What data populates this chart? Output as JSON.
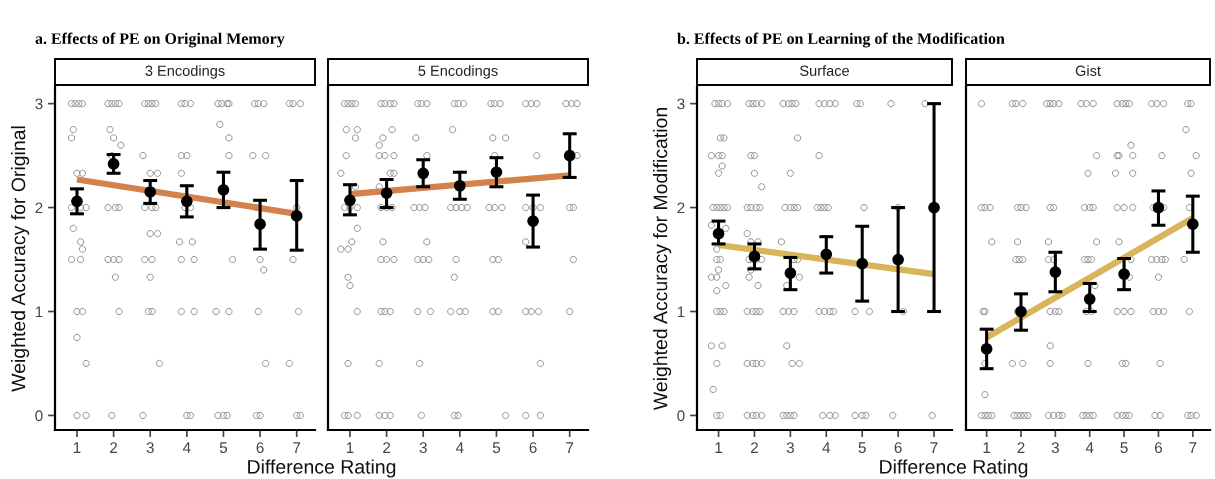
{
  "chart_data": [
    {
      "type": "scatter",
      "title": "a. Effects of PE on Original Memory",
      "subtitle": "3 Encodings",
      "xlabel": "Difference Rating",
      "ylabel": "Weighted Accuracy for Original",
      "xlim": [
        0.4,
        7.5
      ],
      "xticks": [
        1,
        2,
        3,
        4,
        5,
        6,
        7
      ],
      "ylim": [
        -0.14,
        3.16
      ],
      "yticks": [
        0,
        1,
        2,
        3
      ],
      "series": [
        {
          "color": "#8c8c8c",
          "marker": "circle",
          "x": [
            0.85,
            0.95,
            1.05,
            1.15,
            1.85,
            1.95,
            2.05,
            2.15,
            2.85,
            2.95,
            3.05,
            3.15,
            3.85,
            3.95,
            4.1,
            4.85,
            4.95,
            5.1,
            5.15,
            5.85,
            5.95,
            6.1,
            6.8,
            6.9,
            7.1,
            0.9,
            1.9,
            0.85,
            2.0,
            5.15,
            2.2,
            4.9,
            1.95,
            2.8,
            3.85,
            4.0,
            5.15,
            5.8,
            6.15,
            1.0,
            1.15,
            3.0,
            3.2,
            3.85,
            0.85,
            1.1,
            1.25,
            1.85,
            2.05,
            2.15,
            2.85,
            3.05,
            3.15,
            3.95,
            4.1,
            5.9,
            7.0,
            0.9,
            3.0,
            3.2,
            1.1,
            3.8,
            4.15,
            1.15,
            0.85,
            1.1,
            1.85,
            2.0,
            2.15,
            2.85,
            3.05,
            3.85,
            4.2,
            5.25,
            6.0,
            6.9,
            2.05,
            3.0,
            6.1,
            1.0,
            1.15,
            2.15,
            2.95,
            3.05,
            3.85,
            4.2,
            4.8,
            5.15,
            5.95,
            7.05,
            1.0,
            1.25,
            3.25,
            6.15,
            6.8,
            1.0,
            1.25,
            1.95,
            2.8,
            4.0,
            4.1,
            4.85,
            5.0,
            5.1,
            5.9,
            6.0,
            7.0,
            7.1
          ],
          "values": [
            3,
            3,
            3,
            3,
            3,
            3,
            3,
            3,
            3,
            3,
            3,
            3,
            3,
            3,
            3,
            3,
            3,
            3,
            3,
            3,
            3,
            3,
            3,
            3,
            3,
            2.75,
            2.75,
            2.67,
            2.67,
            2.67,
            2.6,
            2.8,
            2.5,
            2.5,
            2.5,
            2.5,
            2.5,
            2.5,
            2.5,
            2.33,
            2.33,
            2.33,
            2.33,
            2.33,
            2,
            2,
            2,
            2,
            2,
            2,
            2,
            2,
            2,
            2,
            2,
            2,
            2,
            1.8,
            1.75,
            1.75,
            1.67,
            1.67,
            1.67,
            1.6,
            1.5,
            1.5,
            1.5,
            1.5,
            1.5,
            1.5,
            1.5,
            1.5,
            1.5,
            1.5,
            1.5,
            1.5,
            1.33,
            1.33,
            1.4,
            1,
            1,
            1,
            1,
            1,
            1,
            1,
            1,
            1,
            1,
            1,
            0.75,
            0.5,
            0.5,
            0.5,
            0.5,
            0,
            0,
            0,
            0,
            0,
            0,
            0,
            0,
            0,
            0,
            0,
            0,
            0
          ]
        },
        {
          "type": "line",
          "color": "#d2824a",
          "marker": "none",
          "x": [
            1,
            7
          ],
          "values": [
            2.27,
            1.94
          ]
        },
        {
          "color": "#000000",
          "marker": "circle",
          "x": [
            1,
            2,
            3,
            4,
            5,
            6,
            7
          ],
          "values": [
            2.06,
            2.42,
            2.15,
            2.06,
            2.17,
            1.84,
            1.92
          ],
          "errors": [
            [
              1.94,
              2.18
            ],
            [
              2.33,
              2.51
            ],
            [
              2.04,
              2.26
            ],
            [
              1.91,
              2.21
            ],
            [
              2.0,
              2.34
            ],
            [
              1.6,
              2.07
            ],
            [
              1.59,
              2.26
            ]
          ]
        }
      ]
    },
    {
      "type": "scatter",
      "subtitle": "5 Encodings",
      "xlim": [
        0.4,
        7.5
      ],
      "xticks": [
        1,
        2,
        3,
        4,
        5,
        6,
        7
      ],
      "ylim": [
        -0.14,
        3.16
      ],
      "yticks": [
        0,
        1,
        2,
        3
      ],
      "tick_labels": "x",
      "series": [
        {
          "color": "#8c8c8c",
          "marker": "circle",
          "x": [
            0.85,
            0.95,
            1.05,
            1.15,
            1.85,
            1.95,
            2.1,
            2.2,
            2.85,
            2.95,
            3.1,
            3.85,
            3.95,
            4.1,
            4.85,
            4.95,
            5.1,
            5.8,
            5.95,
            6.1,
            6.9,
            7.05,
            7.2,
            0.9,
            1.2,
            2.15,
            3.8,
            1.15,
            1.9,
            2.8,
            4.9,
            5.25,
            1.8,
            0.9,
            1.8,
            1.95,
            2.2,
            3.1,
            4.95,
            6.1,
            7.2,
            0.75,
            2.1,
            2.2,
            1.15,
            1.8,
            0.85,
            1.0,
            1.2,
            1.85,
            2.0,
            2.15,
            2.75,
            2.9,
            3.05,
            3.75,
            3.9,
            4.05,
            4.2,
            4.8,
            4.95,
            5.15,
            5.8,
            6.0,
            6.2,
            7.0,
            7.1,
            1.2,
            1.05,
            1.9,
            3.1,
            5.8,
            0.75,
            0.95,
            1.85,
            2.0,
            2.2,
            2.85,
            3.0,
            3.15,
            3.9,
            4.9,
            5.05,
            7.1,
            0.95,
            3.85,
            1.0,
            1.2,
            1.85,
            1.95,
            2.1,
            2.85,
            3.2,
            3.75,
            4.0,
            4.15,
            4.9,
            5.05,
            5.8,
            5.95,
            6.15,
            7.0,
            0.95,
            1.8,
            2.9,
            6.2,
            0.85,
            0.95,
            1.2,
            1.8,
            1.95,
            2.1,
            2.95,
            3.85,
            3.95,
            5.25,
            5.8,
            6.2
          ],
          "values": [
            3,
            3,
            3,
            3,
            3,
            3,
            3,
            3,
            3,
            3,
            3,
            3,
            3,
            3,
            3,
            3,
            3,
            3,
            3,
            3,
            3,
            3,
            3,
            2.75,
            2.75,
            2.75,
            2.75,
            2.67,
            2.67,
            2.67,
            2.67,
            2.67,
            2.6,
            2.5,
            2.5,
            2.5,
            2.5,
            2.5,
            2.5,
            2.5,
            2.5,
            2.33,
            2.33,
            2.33,
            2.2,
            2.2,
            2,
            2,
            2,
            2,
            2,
            2,
            2,
            2,
            2,
            2,
            2,
            2,
            2,
            2,
            2,
            2,
            2,
            2,
            2,
            2,
            2,
            1.8,
            1.67,
            1.67,
            1.67,
            1.67,
            1.6,
            1.6,
            1.5,
            1.5,
            1.5,
            1.5,
            1.5,
            1.5,
            1.5,
            1.5,
            1.5,
            1.5,
            1.33,
            1.33,
            1.25,
            1,
            1,
            1,
            1,
            1,
            1,
            1,
            1,
            1,
            1,
            1,
            1,
            1,
            1,
            1,
            0.5,
            0.5,
            0.5,
            0.5,
            0,
            0,
            0,
            0,
            0,
            0,
            0,
            0,
            0,
            0,
            0,
            0
          ]
        },
        {
          "type": "line",
          "color": "#d2824a",
          "marker": "none",
          "x": [
            1,
            7
          ],
          "values": [
            2.13,
            2.31
          ]
        },
        {
          "color": "#000000",
          "marker": "circle",
          "x": [
            1,
            2,
            3,
            4,
            5,
            6,
            7
          ],
          "values": [
            2.07,
            2.14,
            2.33,
            2.21,
            2.34,
            1.87,
            2.5
          ],
          "errors": [
            [
              1.93,
              2.22
            ],
            [
              2.0,
              2.27
            ],
            [
              2.2,
              2.46
            ],
            [
              2.08,
              2.34
            ],
            [
              2.2,
              2.48
            ],
            [
              1.62,
              2.12
            ],
            [
              2.29,
              2.71
            ]
          ]
        }
      ]
    },
    {
      "type": "scatter",
      "title": "b. Effects of PE on Learning of the Modification",
      "subtitle": "Surface",
      "xlabel": "Difference Rating",
      "ylabel": "Weighted Accuracy for Modification",
      "xlim": [
        0.4,
        7.5
      ],
      "xticks": [
        1,
        2,
        3,
        4,
        5,
        6,
        7
      ],
      "ylim": [
        -0.14,
        3.16
      ],
      "yticks": [
        0,
        1,
        2,
        3
      ],
      "series": [
        {
          "color": "#8c8c8c",
          "marker": "circle",
          "x": [
            0.9,
            1.0,
            1.1,
            1.25,
            1.85,
            1.95,
            2.05,
            2.2,
            2.8,
            2.95,
            3.05,
            3.15,
            3.8,
            3.95,
            4.1,
            4.25,
            4.85,
            4.95,
            5.8,
            6.75,
            1.05,
            1.15,
            3.2,
            0.8,
            1.0,
            1.1,
            1.9,
            2.0,
            3.8,
            1.1,
            1.0,
            2.0,
            3.0,
            2.2,
            0.85,
            0.95,
            1.05,
            1.15,
            1.25,
            1.8,
            1.9,
            2.05,
            2.15,
            2.85,
            3.0,
            3.1,
            3.2,
            3.75,
            3.85,
            3.95,
            4.05,
            5.05,
            6.0,
            0.8,
            1.2,
            1.8,
            1.9,
            2.1,
            2.75,
            0.95,
            0.95,
            1.05,
            1.85,
            1.95,
            2.05,
            2.2,
            3.1,
            3.2,
            1.0,
            1.9,
            0.8,
            0.95,
            1.85,
            3.25,
            1.2,
            2.1,
            2.9,
            0.95,
            0.95,
            1.05,
            1.15,
            1.8,
            1.95,
            2.05,
            2.15,
            2.8,
            2.95,
            3.1,
            3.8,
            3.95,
            4.1,
            4.2,
            4.8,
            5.2,
            6.15,
            0.8,
            1.1,
            2.9,
            0.95,
            1.8,
            1.95,
            2.05,
            2.2,
            3.05,
            3.25,
            0.85,
            0.95,
            1.05,
            1.8,
            1.95,
            2.05,
            2.2,
            2.8,
            2.9,
            3.0,
            3.1,
            3.9,
            4.1,
            4.25,
            4.8,
            5.0,
            5.1,
            5.85,
            6.95
          ],
          "values": [
            3,
            3,
            3,
            3,
            3,
            3,
            3,
            3,
            3,
            3,
            3,
            3,
            3,
            3,
            3,
            3,
            3,
            3,
            3,
            3,
            2.67,
            2.67,
            2.67,
            2.5,
            2.5,
            2.5,
            2.5,
            2.5,
            2.5,
            2.4,
            2.33,
            2.33,
            2.33,
            2.2,
            2,
            2,
            2,
            2,
            2,
            2,
            2,
            2,
            2,
            2,
            2,
            2,
            2,
            2,
            2,
            2,
            2,
            2,
            2,
            1.83,
            1.8,
            1.75,
            1.67,
            1.67,
            1.67,
            1.6,
            1.5,
            1.5,
            1.5,
            1.5,
            1.5,
            1.5,
            1.5,
            1.5,
            1.4,
            1.4,
            1.33,
            1.33,
            1.33,
            1.33,
            1.25,
            1.25,
            1.25,
            1.2,
            1,
            1,
            1,
            1,
            1,
            1,
            1,
            1,
            1,
            1,
            1,
            1,
            1,
            1,
            1,
            1,
            1,
            0.67,
            0.67,
            0.67,
            0.5,
            0.5,
            0.5,
            0.5,
            0.5,
            0.5,
            0.5,
            0.25,
            0,
            0,
            0,
            0,
            0,
            0,
            0,
            0,
            0,
            0,
            0,
            0,
            0,
            0,
            0,
            0,
            0,
            0
          ]
        },
        {
          "type": "line",
          "color": "#d9b45a",
          "marker": "none",
          "x": [
            1,
            7
          ],
          "values": [
            1.64,
            1.36
          ]
        },
        {
          "color": "#000000",
          "marker": "circle",
          "x": [
            1,
            2,
            3,
            4,
            5,
            6,
            7
          ],
          "values": [
            1.75,
            1.53,
            1.37,
            1.55,
            1.46,
            1.5,
            2.0
          ],
          "errors": [
            [
              1.65,
              1.87
            ],
            [
              1.41,
              1.65
            ],
            [
              1.21,
              1.52
            ],
            [
              1.37,
              1.72
            ],
            [
              1.1,
              1.82
            ],
            [
              1.0,
              2.0
            ],
            [
              1.0,
              3.0
            ]
          ]
        }
      ]
    },
    {
      "type": "scatter",
      "subtitle": "Gist",
      "xlim": [
        0.4,
        7.5
      ],
      "xticks": [
        1,
        2,
        3,
        4,
        5,
        6,
        7
      ],
      "ylim": [
        -0.14,
        3.16
      ],
      "yticks": [
        0,
        1,
        2,
        3
      ],
      "tick_labels": "x",
      "series": [
        {
          "color": "#8c8c8c",
          "marker": "circle",
          "x": [
            0.85,
            1.75,
            1.85,
            2.05,
            2.75,
            2.85,
            2.95,
            3.1,
            3.75,
            3.9,
            4.1,
            4.8,
            4.95,
            5.05,
            5.15,
            5.8,
            5.95,
            6.15,
            6.85,
            6.95,
            6.8,
            5.2,
            4.2,
            4.8,
            4.85,
            5.25,
            6.1,
            7.1,
            3.95,
            4.75,
            5.25,
            6.95,
            0.85,
            0.95,
            1.1,
            1.9,
            2.0,
            2.15,
            2.85,
            2.95,
            3.85,
            4.0,
            4.1,
            4.8,
            5.0,
            5.25,
            5.85,
            6.15,
            6.9,
            1.15,
            1.9,
            2.8,
            4.2,
            4.85,
            1.85,
            1.95,
            2.05,
            2.8,
            2.95,
            3.85,
            3.95,
            4.05,
            5.2,
            5.8,
            5.95,
            6.1,
            6.2,
            6.75,
            5.15,
            6.0,
            4.15,
            0.9,
            0.95,
            1.9,
            2.85,
            3.0,
            3.1,
            3.9,
            4.05,
            4.8,
            5.0,
            5.2,
            5.85,
            6.0,
            6.15,
            6.9,
            2.85,
            0.95,
            1.75,
            2.05,
            2.85,
            3.95,
            4.95,
            5.05,
            6.05,
            0.95,
            0.85,
            0.95,
            1.05,
            1.15,
            1.8,
            1.9,
            2.0,
            2.1,
            2.2,
            2.8,
            2.95,
            3.1,
            3.2,
            3.8,
            3.9,
            4.0,
            4.1,
            4.8,
            4.95,
            5.05,
            5.15,
            5.9,
            6.05,
            6.85,
            6.95,
            7.1
          ],
          "values": [
            3,
            3,
            3,
            3,
            3,
            3,
            3,
            3,
            3,
            3,
            3,
            3,
            3,
            3,
            3,
            3,
            3,
            3,
            3,
            3,
            2.75,
            2.6,
            2.5,
            2.5,
            2.5,
            2.5,
            2.5,
            2.5,
            2.33,
            2.33,
            2.33,
            2.33,
            2,
            2,
            2,
            2,
            2,
            2,
            2,
            2,
            2,
            2,
            2,
            2,
            2,
            2,
            2,
            2,
            2,
            1.67,
            1.67,
            1.67,
            1.67,
            1.67,
            1.5,
            1.5,
            1.5,
            1.5,
            1.5,
            1.5,
            1.5,
            1.5,
            1.5,
            1.5,
            1.5,
            1.5,
            1.5,
            1.5,
            1.33,
            1.33,
            1.25,
            1,
            1,
            1,
            1,
            1,
            1,
            1,
            1,
            1,
            1,
            1,
            1,
            1,
            1,
            1,
            0.67,
            0.5,
            0.5,
            0.5,
            0.5,
            0.5,
            0.5,
            0.5,
            0.5,
            0.2,
            0,
            0,
            0,
            0,
            0,
            0,
            0,
            0,
            0,
            0,
            0,
            0,
            0,
            0,
            0,
            0,
            0,
            0,
            0,
            0,
            0,
            0,
            0,
            0,
            0,
            0
          ]
        },
        {
          "type": "line",
          "color": "#d9b45a",
          "marker": "none",
          "x": [
            1,
            7
          ],
          "values": [
            0.75,
            1.9
          ]
        },
        {
          "color": "#000000",
          "marker": "circle",
          "x": [
            1,
            2,
            3,
            4,
            5,
            6,
            7
          ],
          "values": [
            0.64,
            1.0,
            1.38,
            1.12,
            1.36,
            2.0,
            1.84
          ],
          "errors": [
            [
              0.45,
              0.83
            ],
            [
              0.82,
              1.17
            ],
            [
              1.19,
              1.57
            ],
            [
              1.0,
              1.27
            ],
            [
              1.21,
              1.51
            ],
            [
              1.83,
              2.16
            ],
            [
              1.57,
              2.11
            ]
          ]
        }
      ]
    }
  ]
}
